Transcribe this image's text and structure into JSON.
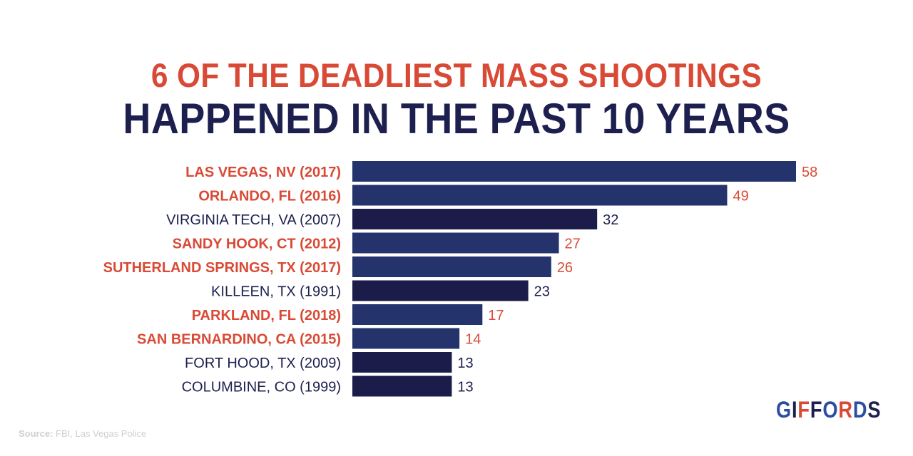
{
  "chart_data": {
    "type": "bar",
    "orientation": "horizontal",
    "title_line1": "6 OF THE DEADLIEST MASS SHOOTINGS",
    "title_line2": "HAPPENED IN THE PAST 10 YEARS",
    "categories": [
      "LAS VEGAS, NV (2017)",
      "ORLANDO, FL (2016)",
      "VIRGINIA TECH, VA (2007)",
      "SANDY HOOK, CT (2012)",
      "SUTHERLAND SPRINGS, TX (2017)",
      "KILLEEN, TX (1991)",
      "PARKLAND, FL (2018)",
      "SAN BERNARDINO, CA (2015)",
      "FORT HOOD, TX (2009)",
      "COLUMBINE, CO (1999)"
    ],
    "values": [
      58,
      49,
      32,
      27,
      26,
      23,
      17,
      14,
      13,
      13
    ],
    "highlighted": [
      true,
      true,
      false,
      true,
      true,
      false,
      true,
      true,
      false,
      false
    ],
    "xlim": [
      0,
      58
    ],
    "grid": false,
    "colors": {
      "highlight_text": "#d94a36",
      "normal_text": "#1d1f4f",
      "highlight_bar": "#24336b",
      "normal_bar": "#1b1c4a"
    }
  },
  "source_label": "Source:",
  "source_text": "FBI, Las Vegas Police",
  "logo": "GIFFORDS"
}
